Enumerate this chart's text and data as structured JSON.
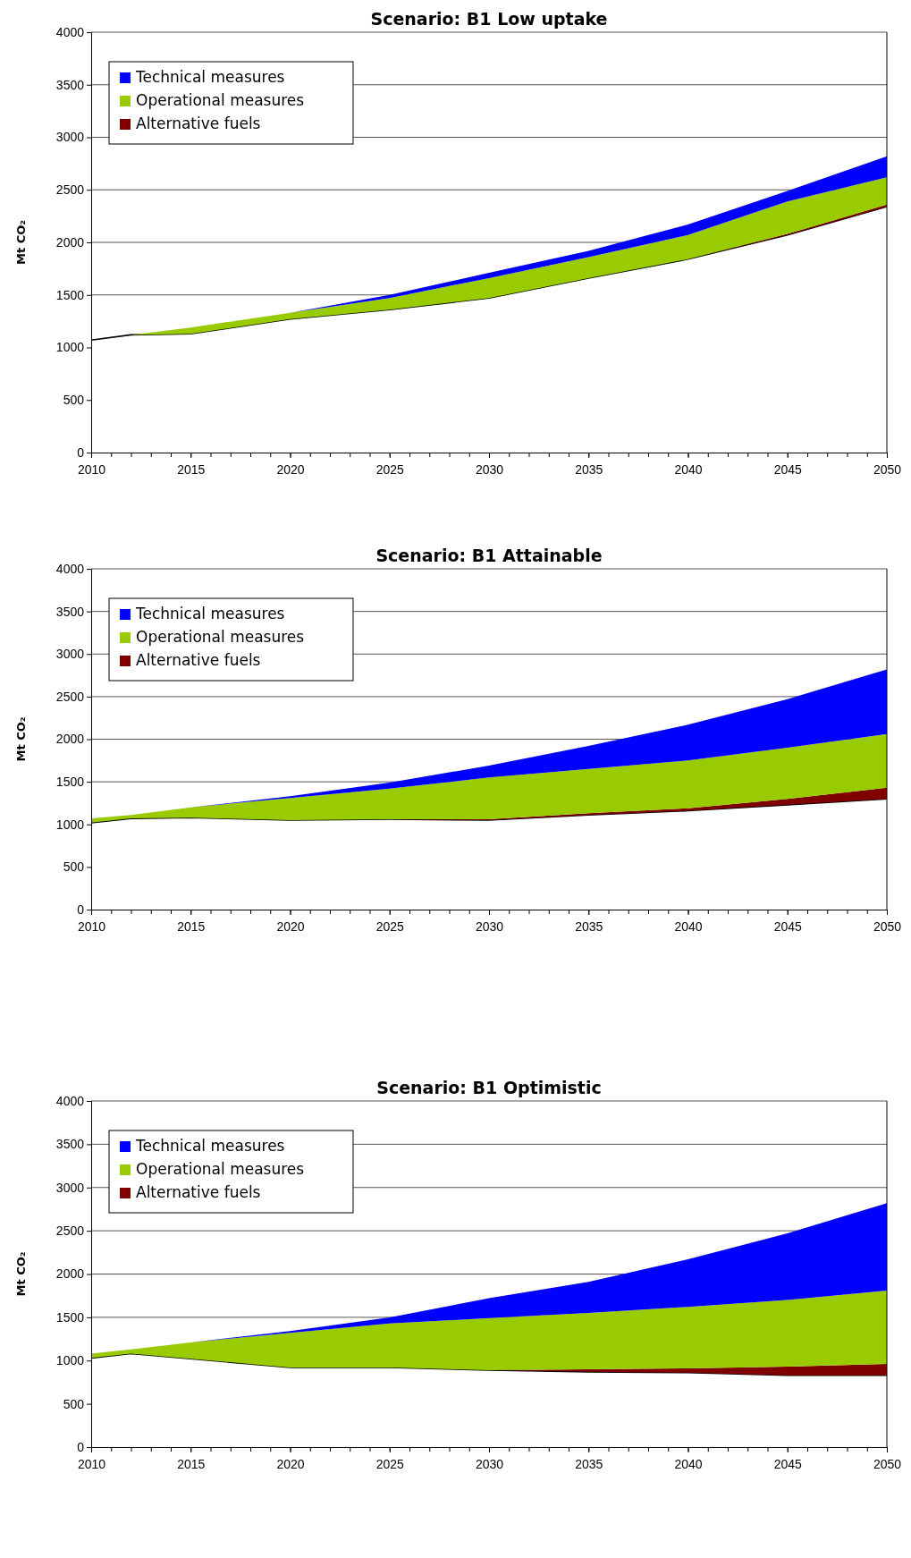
{
  "chart_data": [
    {
      "type": "area",
      "title": "Scenario: B1 Low uptake",
      "ylabel": "Mt CO₂",
      "x": [
        2010,
        2012,
        2015,
        2020,
        2025,
        2030,
        2035,
        2040,
        2045,
        2050
      ],
      "stacked": true,
      "xlim": [
        2010,
        2050
      ],
      "xticks": [
        2010,
        2015,
        2020,
        2025,
        2030,
        2035,
        2040,
        2045,
        2050
      ],
      "ylim": [
        0,
        4000
      ],
      "yticks": [
        0,
        500,
        1000,
        1500,
        2000,
        2500,
        3000,
        3500,
        4000
      ],
      "grid": "y",
      "legend": "top left",
      "series": [
        {
          "color": "#ffffff",
          "values": [
            1070,
            1120,
            1130,
            1270,
            1360,
            1470,
            1660,
            1840,
            2070,
            2340
          ]
        },
        {
          "name": "Alternative fuels",
          "color": "#800000",
          "values": [
            0,
            0,
            0,
            0,
            0,
            0,
            0,
            0,
            10,
            20
          ]
        },
        {
          "name": "Operational measures",
          "color": "#99cc00",
          "values": [
            0,
            0,
            60,
            60,
            110,
            190,
            200,
            230,
            310,
            260
          ]
        },
        {
          "name": "Technical measures",
          "color": "#0000ff",
          "values": [
            0,
            0,
            0,
            0,
            30,
            50,
            60,
            100,
            100,
            200
          ]
        }
      ]
    },
    {
      "type": "area",
      "title": "Scenario: B1 Attainable",
      "ylabel": "Mt CO₂",
      "x": [
        2010,
        2012,
        2015,
        2020,
        2025,
        2030,
        2035,
        2040,
        2045,
        2050
      ],
      "stacked": true,
      "xlim": [
        2010,
        2050
      ],
      "xticks": [
        2010,
        2015,
        2020,
        2025,
        2030,
        2035,
        2040,
        2045,
        2050
      ],
      "ylim": [
        0,
        4000
      ],
      "yticks": [
        0,
        500,
        1000,
        1500,
        2000,
        2500,
        3000,
        3500,
        4000
      ],
      "grid": "y",
      "legend": "top left",
      "series": [
        {
          "color": "#ffffff",
          "values": [
            1020,
            1070,
            1080,
            1050,
            1060,
            1050,
            1110,
            1160,
            1230,
            1300
          ]
        },
        {
          "name": "Alternative fuels",
          "color": "#800000",
          "values": [
            0,
            0,
            0,
            0,
            0,
            10,
            20,
            30,
            70,
            130
          ]
        },
        {
          "name": "Operational measures",
          "color": "#99cc00",
          "values": [
            50,
            40,
            120,
            260,
            360,
            490,
            520,
            560,
            600,
            630
          ]
        },
        {
          "name": "Technical measures",
          "color": "#0000ff",
          "values": [
            0,
            0,
            0,
            20,
            70,
            140,
            270,
            420,
            570,
            760
          ]
        }
      ]
    },
    {
      "type": "area",
      "title": "Scenario: B1 Optimistic",
      "ylabel": "Mt CO₂",
      "x": [
        2010,
        2012,
        2015,
        2020,
        2025,
        2030,
        2035,
        2040,
        2045,
        2050
      ],
      "stacked": true,
      "xlim": [
        2010,
        2050
      ],
      "xticks": [
        2010,
        2015,
        2020,
        2025,
        2030,
        2035,
        2040,
        2045,
        2050
      ],
      "ylim": [
        0,
        4000
      ],
      "yticks": [
        0,
        500,
        1000,
        1500,
        2000,
        2500,
        3000,
        3500,
        4000
      ],
      "grid": "y",
      "legend": "top left",
      "series": [
        {
          "color": "#ffffff",
          "values": [
            1030,
            1080,
            1020,
            920,
            920,
            890,
            870,
            860,
            830,
            830
          ]
        },
        {
          "name": "Alternative fuels",
          "color": "#800000",
          "values": [
            0,
            0,
            0,
            0,
            0,
            0,
            30,
            50,
            100,
            130
          ]
        },
        {
          "name": "Operational measures",
          "color": "#99cc00",
          "values": [
            50,
            50,
            190,
            400,
            510,
            600,
            650,
            710,
            770,
            850
          ]
        },
        {
          "name": "Technical measures",
          "color": "#0000ff",
          "values": [
            0,
            0,
            0,
            20,
            70,
            230,
            360,
            550,
            770,
            1010
          ]
        }
      ]
    }
  ]
}
